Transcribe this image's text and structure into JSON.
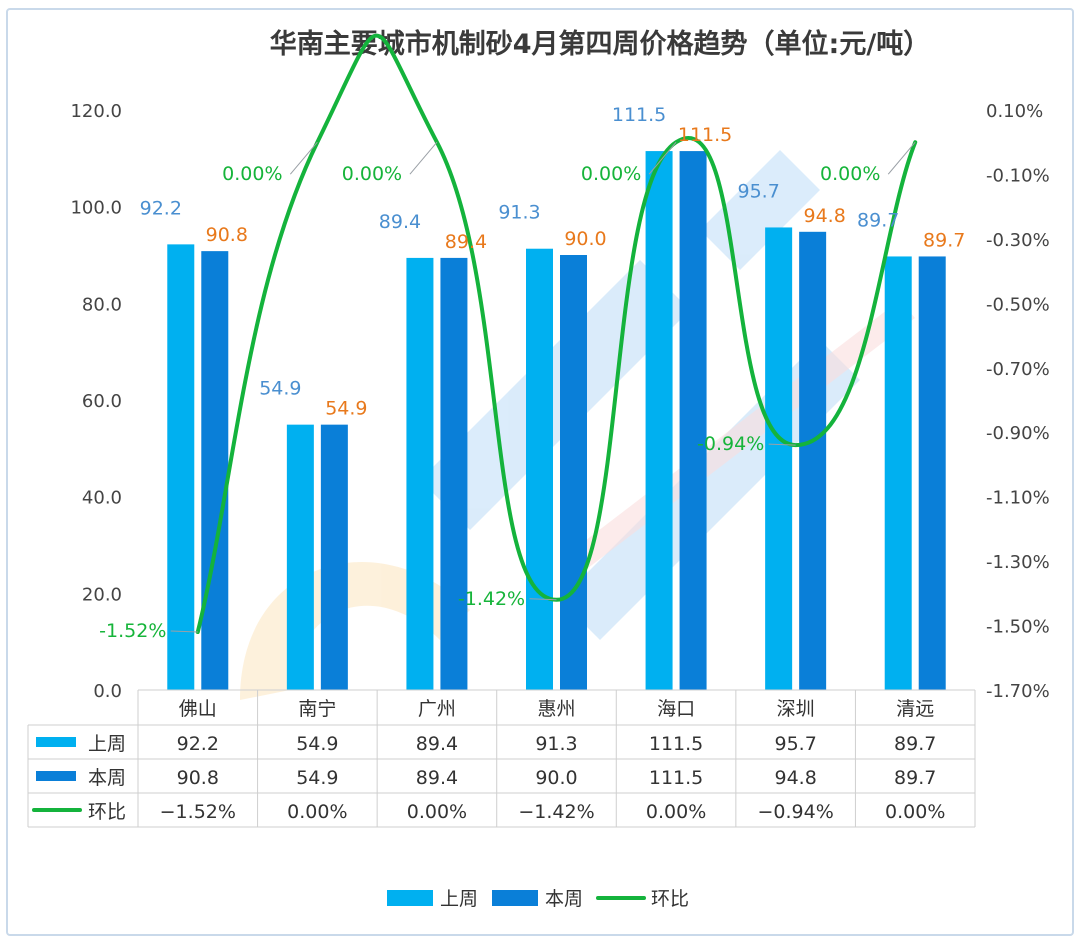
{
  "colors": {
    "last_week": "#00b0f0",
    "this_week": "#0a7fd8",
    "change": "#14b33c",
    "label_last": "#4a8fd0",
    "label_this": "#e8791c",
    "label_change": "#16b43a"
  },
  "chart_data": {
    "type": "bar",
    "title": "华南主要城市机制砂4月第四周价格趋势（单位:元/吨）",
    "categories": [
      "佛山",
      "南宁",
      "广州",
      "惠州",
      "海口",
      "深圳",
      "清远"
    ],
    "series": [
      {
        "name": "上周",
        "values": [
          92.2,
          54.9,
          89.4,
          91.3,
          111.5,
          95.7,
          89.7
        ],
        "labels": [
          "92.2",
          "54.9",
          "89.4",
          "91.3",
          "111.5",
          "95.7",
          "89.7"
        ]
      },
      {
        "name": "本周",
        "values": [
          90.8,
          54.9,
          89.4,
          90.0,
          111.5,
          94.8,
          89.7
        ],
        "labels": [
          "90.8",
          "54.9",
          "89.4",
          "90.0",
          "111.5",
          "94.8",
          "89.7"
        ]
      }
    ],
    "line_series": {
      "name": "环比",
      "values": [
        -1.52,
        0.0,
        0.0,
        -1.42,
        0.0,
        -0.94,
        0.0
      ],
      "labels": [
        "-1.52%",
        "0.00%",
        "0.00%",
        "-1.42%",
        "0.00%",
        "-0.94%",
        "0.00%"
      ],
      "table_labels": [
        "−1.52%",
        "0.00%",
        "0.00%",
        "−1.42%",
        "0.00%",
        "−0.94%",
        "0.00%"
      ]
    },
    "y_left": {
      "min": 0,
      "max": 120,
      "ticks": [
        "0.0",
        "20.0",
        "40.0",
        "60.0",
        "80.0",
        "100.0",
        "120.0"
      ]
    },
    "y_right": {
      "min": -1.7,
      "max": 0.1,
      "ticks": [
        "0.10%",
        "-0.10%",
        "-0.30%",
        "-0.50%",
        "-0.70%",
        "-0.90%",
        "-1.10%",
        "-1.30%",
        "-1.50%",
        "-1.70%"
      ]
    },
    "legend": {
      "placement": "bottom",
      "items": [
        "上周",
        "本周",
        "环比"
      ]
    },
    "data_table": true,
    "grid": false
  }
}
